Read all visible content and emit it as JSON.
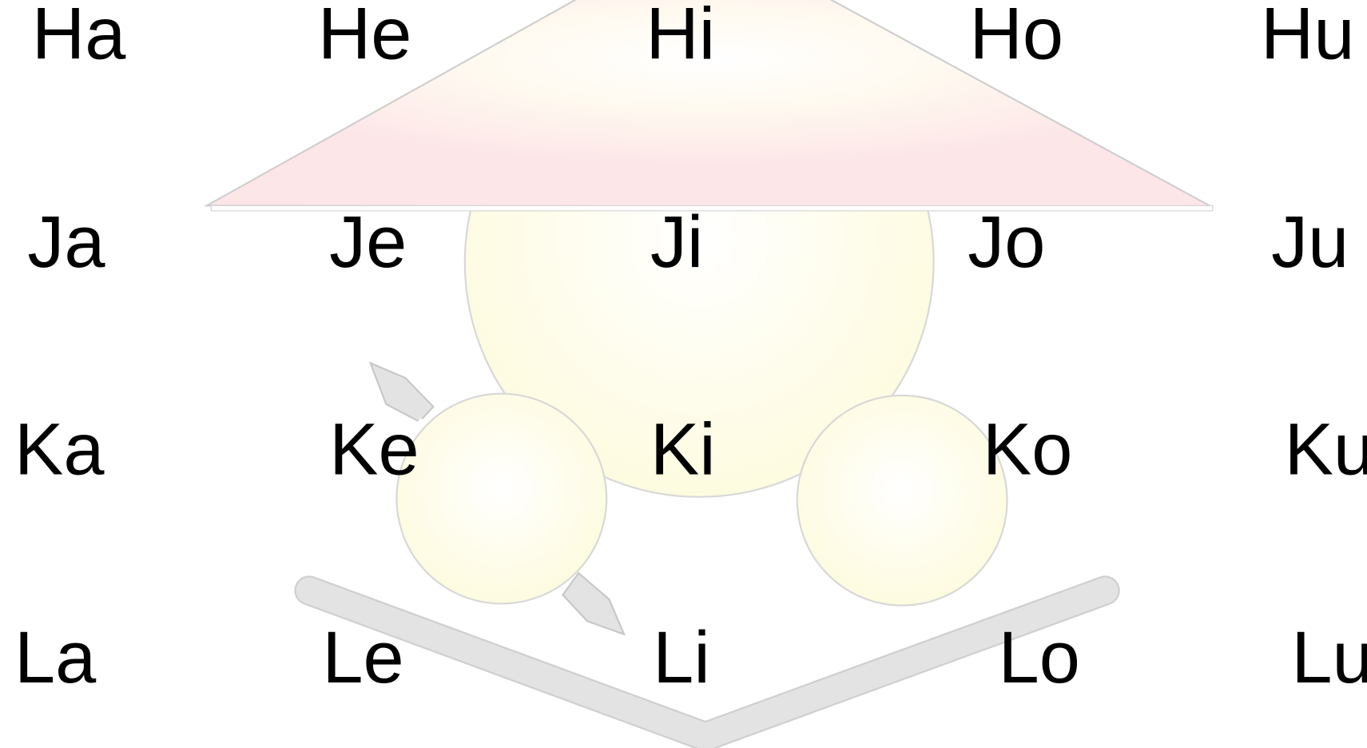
{
  "rows": [
    [
      "Ha",
      "He",
      "Hi",
      "Ho",
      "Hu"
    ],
    [
      "Ja",
      "Je",
      "Ji",
      "Jo",
      "Ju"
    ],
    [
      "Ka",
      "Ke",
      "Ki",
      "Ko",
      "Ku"
    ],
    [
      "La",
      "Le",
      "Li",
      "Lo",
      "Lu"
    ]
  ]
}
